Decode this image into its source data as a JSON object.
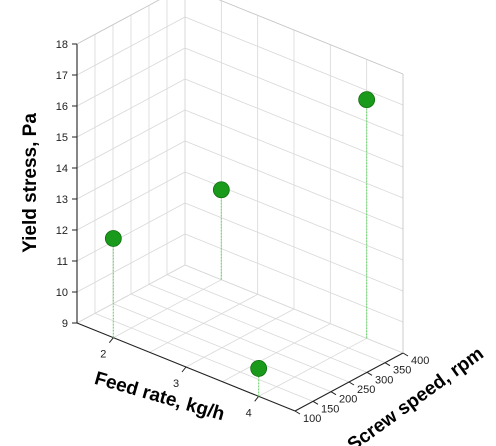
{
  "chart_data": {
    "type": "scatter",
    "subtype": "3d-scatter-with-drop-lines",
    "title": "",
    "xlabel": "Feed rate, kg/h",
    "ylabel": "Screw speed, rpm",
    "zlabel": "Yield stress, Pa",
    "xlim": [
      1.5,
      4.5
    ],
    "ylim": [
      100,
      400
    ],
    "zlim": [
      9,
      18
    ],
    "x_ticks": [
      "2",
      "3",
      "4"
    ],
    "y_ticks": [
      "100",
      "150",
      "200",
      "250",
      "300",
      "350",
      "400"
    ],
    "z_ticks": [
      "9",
      "10",
      "11",
      "12",
      "13",
      "14",
      "15",
      "16",
      "17",
      "18"
    ],
    "grid": true,
    "marker_color": "#1a9a1a",
    "drop_line_color": "#7ad87a",
    "points": [
      {
        "x": 2.0,
        "y": 100,
        "z": 12.2
      },
      {
        "x": 4.0,
        "y": 100,
        "z": 9.9
      },
      {
        "x": 2.0,
        "y": 400,
        "z": 11.9
      },
      {
        "x": 4.0,
        "y": 400,
        "z": 16.7
      }
    ]
  }
}
